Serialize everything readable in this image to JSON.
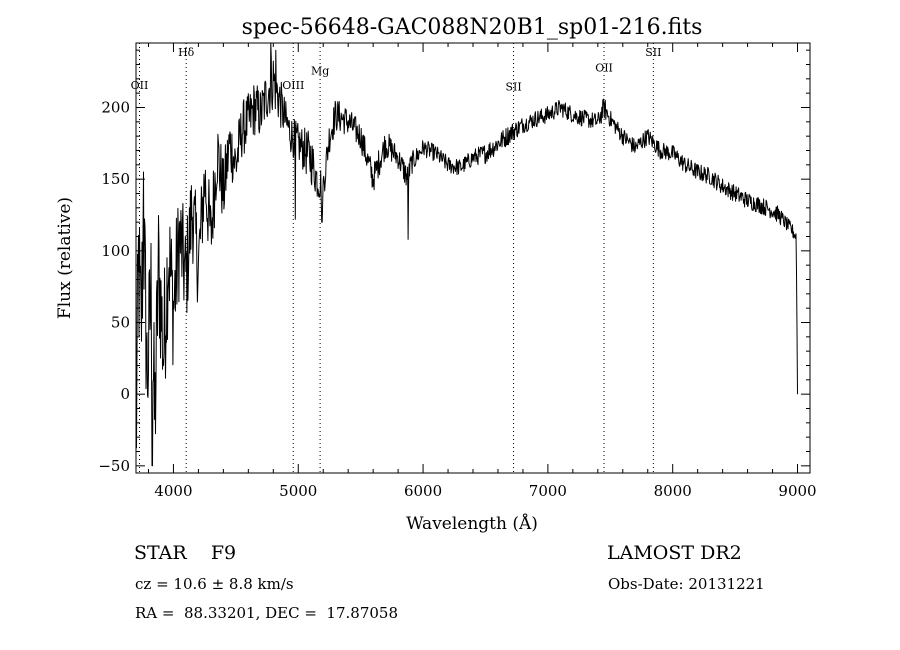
{
  "chart_data": {
    "type": "line",
    "title": "spec-56648-GAC088N20B1_sp01-216.fits",
    "xlabel": "Wavelength (Å)",
    "ylabel": "Flux (relative)",
    "xlim": [
      3700,
      9100
    ],
    "ylim": [
      -55,
      245
    ],
    "x_ticks": [
      4000,
      5000,
      6000,
      7000,
      8000,
      9000
    ],
    "y_ticks": [
      -50,
      0,
      50,
      100,
      150,
      200
    ],
    "grid": false,
    "legend": "none",
    "line_color": "#000000",
    "series": [
      {
        "anchor_x": [
          3700,
          3720,
          3740,
          3760,
          3790,
          3820,
          3850,
          3880,
          3920,
          3960,
          4000,
          4050,
          4100,
          4150,
          4200,
          4250,
          4300,
          4350,
          4400,
          4450,
          4500,
          4550,
          4600,
          4650,
          4700,
          4750,
          4800,
          4850,
          4900,
          4950,
          5000,
          5050,
          5100,
          5150,
          5200,
          5250,
          5300,
          5400,
          5500,
          5600,
          5700,
          5800,
          5880,
          5900,
          6000,
          6100,
          6200,
          6300,
          6400,
          6500,
          6600,
          6700,
          6800,
          6900,
          7000,
          7100,
          7200,
          7300,
          7400,
          7450,
          7500,
          7600,
          7700,
          7800,
          7900,
          8000,
          8100,
          8200,
          8300,
          8400,
          8500,
          8600,
          8700,
          8800,
          8850,
          8900,
          8950,
          8990,
          9000
        ],
        "anchor_y": [
          -40,
          90,
          40,
          120,
          10,
          70,
          -20,
          90,
          30,
          100,
          60,
          110,
          80,
          130,
          90,
          150,
          110,
          170,
          140,
          175,
          160,
          185,
          190,
          200,
          195,
          210,
          220,
          205,
          190,
          180,
          175,
          170,
          165,
          150,
          145,
          180,
          195,
          190,
          180,
          150,
          175,
          165,
          150,
          160,
          172,
          168,
          160,
          158,
          165,
          168,
          175,
          182,
          188,
          192,
          195,
          200,
          195,
          192,
          190,
          200,
          192,
          180,
          172,
          180,
          170,
          168,
          160,
          155,
          152,
          145,
          140,
          135,
          132,
          128,
          125,
          120,
          115,
          110,
          0
        ],
        "noise_amp": [
          60,
          60,
          60,
          55,
          55,
          55,
          55,
          50,
          50,
          48,
          45,
          40,
          38,
          35,
          32,
          30,
          28,
          28,
          25,
          22,
          22,
          20,
          20,
          20,
          18,
          20,
          22,
          18,
          15,
          14,
          14,
          16,
          18,
          14,
          12,
          12,
          12,
          10,
          10,
          10,
          10,
          8,
          10,
          8,
          6,
          6,
          6,
          6,
          6,
          7,
          7,
          7,
          6,
          6,
          6,
          6,
          6,
          6,
          6,
          8,
          6,
          6,
          6,
          6,
          6,
          6,
          6,
          6,
          6,
          6,
          6,
          6,
          6,
          6,
          6,
          5,
          5,
          5,
          0
        ],
        "spikes": [
          {
            "x": 4780,
            "y": 245
          },
          {
            "x": 4820,
            "y": 240
          },
          {
            "x": 4975,
            "y": 122
          },
          {
            "x": 5190,
            "y": 120
          },
          {
            "x": 5880,
            "y": 108
          },
          {
            "x": 3760,
            "y": 155
          },
          {
            "x": 3830,
            "y": -50
          }
        ]
      }
    ],
    "lines": [
      {
        "label": "OII",
        "x": 3728,
        "label_y": 213
      },
      {
        "label": "Hδ",
        "x": 4102,
        "label_y": 236
      },
      {
        "label": "OIII",
        "x": 4960,
        "label_y": 213
      },
      {
        "label": "Mg",
        "x": 5175,
        "label_y": 223
      },
      {
        "label": "SII",
        "x": 6725,
        "label_y": 212
      },
      {
        "label": "OII",
        "x": 7450,
        "label_y": 225
      },
      {
        "label": "SII",
        "x": 7845,
        "label_y": 236
      }
    ]
  },
  "info": {
    "object": "STAR    F9",
    "survey": "LAMOST DR2",
    "cz": "cz = 10.6 ± 8.8 km/s",
    "obs_date": "Obs-Date: 20131221",
    "coords": "RA =  88.33201, DEC =  17.87058"
  }
}
